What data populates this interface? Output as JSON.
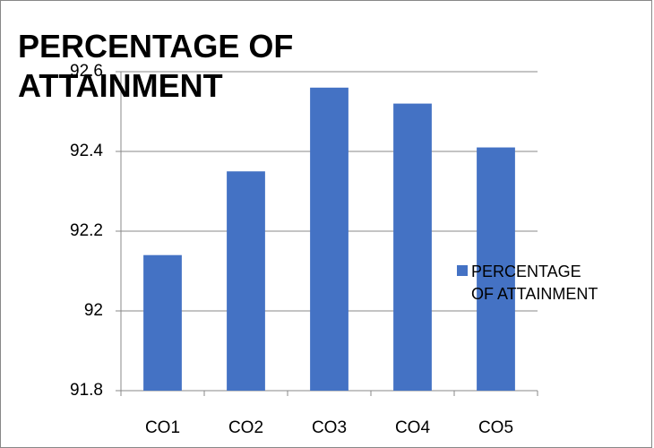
{
  "chart_data": {
    "type": "bar",
    "title": "PERCENTAGE OF ATTAINMENT",
    "categories": [
      "CO1",
      "CO2",
      "CO3",
      "CO4",
      "CO5"
    ],
    "series": [
      {
        "name": "PERCENTAGE OF ATTAINMENT",
        "color": "#4472c4",
        "values": [
          92.14,
          92.35,
          92.56,
          92.52,
          92.41
        ]
      }
    ],
    "ylim": [
      91.8,
      92.6
    ],
    "yticks": [
      91.8,
      92,
      92.2,
      92.4,
      92.6
    ],
    "grid": true,
    "legend": "right"
  }
}
